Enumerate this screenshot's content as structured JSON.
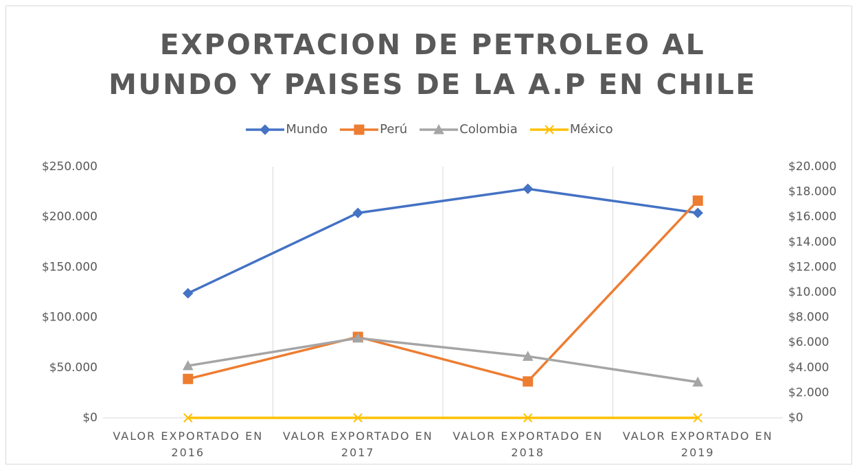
{
  "chart_data": {
    "type": "line",
    "title": "EXPORTACION DE PETROLEO AL MUNDO Y PAISES DE LA A.P EN CHILE",
    "categories": [
      "VALOR EXPORTADO EN 2016",
      "VALOR EXPORTADO EN 2017",
      "VALOR EXPORTADO EN 2018",
      "VALOR EXPORTADO EN 2019"
    ],
    "series": [
      {
        "name": "Mundo",
        "color": "#4472c4",
        "marker": "diamond",
        "values": [
          124000,
          204000,
          228000,
          204000
        ]
      },
      {
        "name": "Perú",
        "color": "#ed7d31",
        "marker": "square",
        "axis": "y2",
        "values": [
          3100,
          6450,
          2900,
          17300
        ]
      },
      {
        "name": "Colombia",
        "color": "#a5a5a5",
        "marker": "triangle",
        "axis": "y2",
        "values": [
          4150,
          6350,
          4900,
          2850
        ]
      },
      {
        "name": "México",
        "color": "#ffc000",
        "marker": "x",
        "axis": "y2",
        "values": [
          0,
          0,
          0,
          0
        ]
      }
    ],
    "ylim": [
      0,
      250000
    ],
    "yticks": [
      {
        "value": 0,
        "label": "$0"
      },
      {
        "value": 50000,
        "label": "$50.000"
      },
      {
        "value": 100000,
        "label": "$100.000"
      },
      {
        "value": 150000,
        "label": "$150.000"
      },
      {
        "value": 200000,
        "label": "$200.000"
      },
      {
        "value": 250000,
        "label": "$250.000"
      }
    ],
    "y2lim": [
      0,
      20000
    ],
    "y2ticks": [
      {
        "value": 0,
        "label": "$0"
      },
      {
        "value": 2000,
        "label": "$2.000"
      },
      {
        "value": 4000,
        "label": "$4.000"
      },
      {
        "value": 6000,
        "label": "$6.000"
      },
      {
        "value": 8000,
        "label": "$8.000"
      },
      {
        "value": 10000,
        "label": "$10.000"
      },
      {
        "value": 12000,
        "label": "$12.000"
      },
      {
        "value": 14000,
        "label": "$14.000"
      },
      {
        "value": 16000,
        "label": "$16.000"
      },
      {
        "value": 18000,
        "label": "$18.000"
      },
      {
        "value": 20000,
        "label": "$20.000"
      }
    ],
    "grid": "x",
    "legend": "top"
  }
}
